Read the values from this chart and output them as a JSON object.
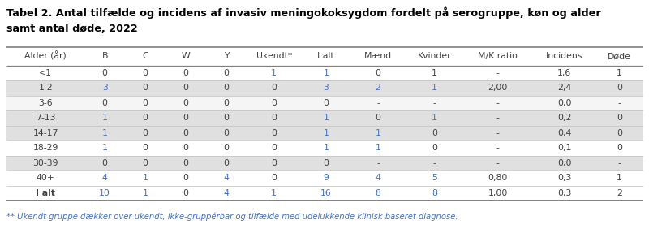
{
  "title_line1": "Tabel 2. Antal tilfælde og incidens af invasiv meningokoksygdom fordelt på serogruppe, køn og alder",
  "title_line2": "samt antal døde, 2022",
  "footnote": "** Ukendt gruppe dækker over ukendt, ikke-gruppérbar og tilfælde med udelukkende klinisk baseret diagnose.",
  "columns": [
    "Alder (år)",
    "B",
    "C",
    "W",
    "Y",
    "Ukendt*",
    "I alt",
    "Mænd",
    "Kvinder",
    "M/K ratio",
    "Incidens",
    "Døde"
  ],
  "rows": [
    [
      "<1",
      "0",
      "0",
      "0",
      "0",
      "1",
      "1",
      "0",
      "1",
      "-",
      "1,6",
      "1"
    ],
    [
      "1-2",
      "3",
      "0",
      "0",
      "0",
      "0",
      "3",
      "2",
      "1",
      "2,00",
      "2,4",
      "0"
    ],
    [
      "3-6",
      "0",
      "0",
      "0",
      "0",
      "0",
      "0",
      "-",
      "-",
      "-",
      "0,0",
      "-"
    ],
    [
      "7-13",
      "1",
      "0",
      "0",
      "0",
      "0",
      "1",
      "0",
      "1",
      "-",
      "0,2",
      "0"
    ],
    [
      "14-17",
      "1",
      "0",
      "0",
      "0",
      "0",
      "1",
      "1",
      "0",
      "-",
      "0,4",
      "0"
    ],
    [
      "18-29",
      "1",
      "0",
      "0",
      "0",
      "0",
      "1",
      "1",
      "0",
      "-",
      "0,1",
      "0"
    ],
    [
      "30-39",
      "0",
      "0",
      "0",
      "0",
      "0",
      "0",
      "-",
      "-",
      "-",
      "0,0",
      "-"
    ],
    [
      "40+",
      "4",
      "1",
      "0",
      "4",
      "0",
      "9",
      "4",
      "5",
      "0,80",
      "0,3",
      "1"
    ],
    [
      "I alt",
      "10",
      "1",
      "0",
      "4",
      "1",
      "16",
      "8",
      "8",
      "1,00",
      "0,3",
      "2"
    ]
  ],
  "col_widths_rel": [
    1.35,
    0.7,
    0.7,
    0.7,
    0.7,
    0.95,
    0.85,
    0.95,
    1.0,
    1.2,
    1.1,
    0.8
  ],
  "row_bgs": [
    "#ffffff",
    "#e0e0e0",
    "#f5f5f5",
    "#e0e0e0",
    "#e0e0e0",
    "#ffffff",
    "#e0e0e0",
    "#ffffff",
    "#ffffff"
  ],
  "header_bg": "#ffffff",
  "text_color_normal": "#404040",
  "text_color_blue": "#4472c4",
  "title_color": "#000000",
  "footnote_color": "#4472c4",
  "border_color_heavy": "#808080",
  "border_color_light": "#c0c0c0",
  "header_fontsize": 7.8,
  "cell_fontsize": 7.8,
  "title_fontsize": 9.2,
  "footnote_fontsize": 7.2,
  "blue_cols_per_row": {
    "0": [
      5,
      6
    ],
    "1": [
      1,
      6,
      7,
      8
    ],
    "2": [],
    "3": [
      1,
      6,
      8
    ],
    "4": [
      1,
      6,
      7
    ],
    "5": [
      1,
      6,
      7
    ],
    "6": [],
    "7": [
      1,
      2,
      4,
      6,
      7,
      8
    ],
    "8": [
      1,
      2,
      4,
      5,
      6,
      7,
      8
    ]
  }
}
